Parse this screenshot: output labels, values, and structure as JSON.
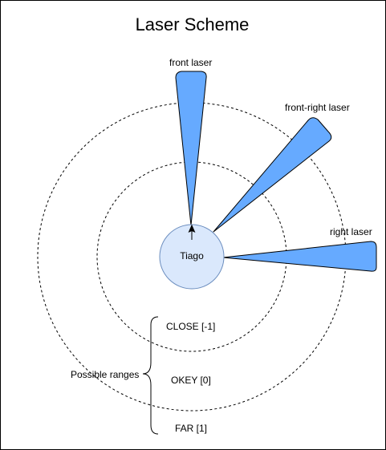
{
  "title": "Laser Scheme",
  "robot": {
    "label": "Tiago"
  },
  "lasers": {
    "front": "front laser",
    "front_right": "front-right laser",
    "right": "right laser"
  },
  "ranges": {
    "caption": "Possible ranges",
    "items": [
      "CLOSE [-1]",
      "OKEY [0]",
      "FAR [1]"
    ]
  },
  "colors": {
    "laser_fill": "#66aaff",
    "robot_fill": "#dae8fc",
    "robot_stroke": "#6c8ebf",
    "line": "#000000"
  }
}
